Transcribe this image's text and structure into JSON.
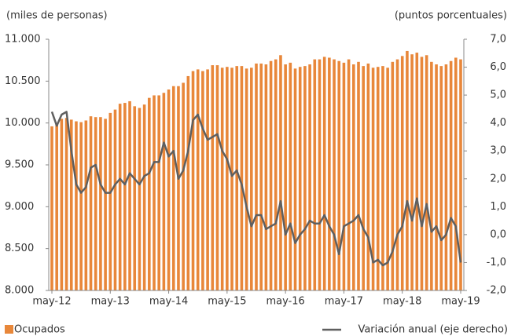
{
  "chart_data": {
    "type": "bar-line",
    "y_label": "(miles de personas)",
    "y2_label": "(puntos porcentuales)",
    "categories": [
      "may-12",
      null,
      null,
      null,
      null,
      null,
      null,
      null,
      null,
      null,
      null,
      null,
      "may-13",
      null,
      null,
      null,
      null,
      null,
      null,
      null,
      null,
      null,
      null,
      null,
      "may-14",
      null,
      null,
      null,
      null,
      null,
      null,
      null,
      null,
      null,
      null,
      null,
      "may-15",
      null,
      null,
      null,
      null,
      null,
      null,
      null,
      null,
      null,
      null,
      null,
      "may-16",
      null,
      null,
      null,
      null,
      null,
      null,
      null,
      null,
      null,
      null,
      null,
      "may-17",
      null,
      null,
      null,
      null,
      null,
      null,
      null,
      null,
      null,
      null,
      null,
      "may-18",
      null,
      null,
      null,
      null,
      null,
      null,
      null,
      null,
      null,
      null,
      null,
      "may-19"
    ],
    "series": [
      {
        "name": "Ocupados",
        "color": "#e8873a",
        "kind": "bar",
        "values": [
          9960,
          10000,
          10050,
          10060,
          10040,
          10020,
          10010,
          10030,
          10080,
          10070,
          10070,
          10050,
          10120,
          10160,
          10230,
          10240,
          10260,
          10200,
          10180,
          10220,
          10300,
          10330,
          10330,
          10360,
          10400,
          10440,
          10440,
          10480,
          10560,
          10620,
          10640,
          10620,
          10640,
          10690,
          10690,
          10660,
          10670,
          10660,
          10680,
          10680,
          10650,
          10660,
          10710,
          10710,
          10700,
          10740,
          10760,
          10810,
          10700,
          10720,
          10650,
          10670,
          10680,
          10700,
          10760,
          10760,
          10790,
          10780,
          10760,
          10740,
          10720,
          10760,
          10700,
          10730,
          10680,
          10710,
          10660,
          10670,
          10680,
          10660,
          10730,
          10760,
          10800,
          10860,
          10820,
          10840,
          10790,
          10810,
          10730,
          10700,
          10680,
          10700,
          10740,
          10780,
          10760
        ]
      },
      {
        "name": "Variación anual (eje derecho)",
        "color": "#5f5f5f",
        "kind": "line",
        "axis": "y2",
        "values": [
          4.4,
          3.9,
          4.3,
          4.4,
          3.0,
          1.8,
          1.5,
          1.7,
          2.4,
          2.5,
          1.8,
          1.5,
          1.5,
          1.8,
          2.0,
          1.8,
          2.2,
          2.0,
          1.8,
          2.1,
          2.2,
          2.6,
          2.6,
          3.3,
          2.8,
          3.0,
          2.0,
          2.3,
          3.0,
          4.1,
          4.3,
          3.8,
          3.4,
          3.5,
          3.6,
          3.0,
          2.7,
          2.1,
          2.3,
          1.8,
          1.0,
          0.3,
          0.7,
          0.7,
          0.2,
          0.3,
          0.4,
          1.2,
          0.0,
          0.4,
          -0.3,
          0.0,
          0.2,
          0.5,
          0.4,
          0.4,
          0.7,
          0.3,
          0.0,
          -0.7,
          0.3,
          0.4,
          0.5,
          0.7,
          0.2,
          -0.1,
          -1.0,
          -0.9,
          -1.1,
          -1.0,
          -0.6,
          0.0,
          0.3,
          1.2,
          0.5,
          1.3,
          0.3,
          1.1,
          0.1,
          0.3,
          -0.2,
          0.0,
          0.6,
          0.3,
          -1.0
        ]
      }
    ],
    "ylim": [
      8000,
      11000
    ],
    "yticks": [
      {
        "value": 8000,
        "label": "8.000"
      },
      {
        "value": 8500,
        "label": "8.500"
      },
      {
        "value": 9000,
        "label": "9.000"
      },
      {
        "value": 9500,
        "label": "9.500"
      },
      {
        "value": 10000,
        "label": "10.000"
      },
      {
        "value": 10500,
        "label": "10.500"
      },
      {
        "value": 11000,
        "label": "11.000"
      }
    ],
    "y2lim": [
      -2,
      7
    ],
    "y2ticks": [
      {
        "value": -2,
        "label": "-2,0"
      },
      {
        "value": -1,
        "label": "-1,0"
      },
      {
        "value": 0,
        "label": "0,0"
      },
      {
        "value": 1,
        "label": "1,0"
      },
      {
        "value": 2,
        "label": "2,0"
      },
      {
        "value": 3,
        "label": "3,0"
      },
      {
        "value": 4,
        "label": "4,0"
      },
      {
        "value": 5,
        "label": "5,0"
      },
      {
        "value": 6,
        "label": "6,0"
      },
      {
        "value": 7,
        "label": "7,0"
      }
    ]
  }
}
